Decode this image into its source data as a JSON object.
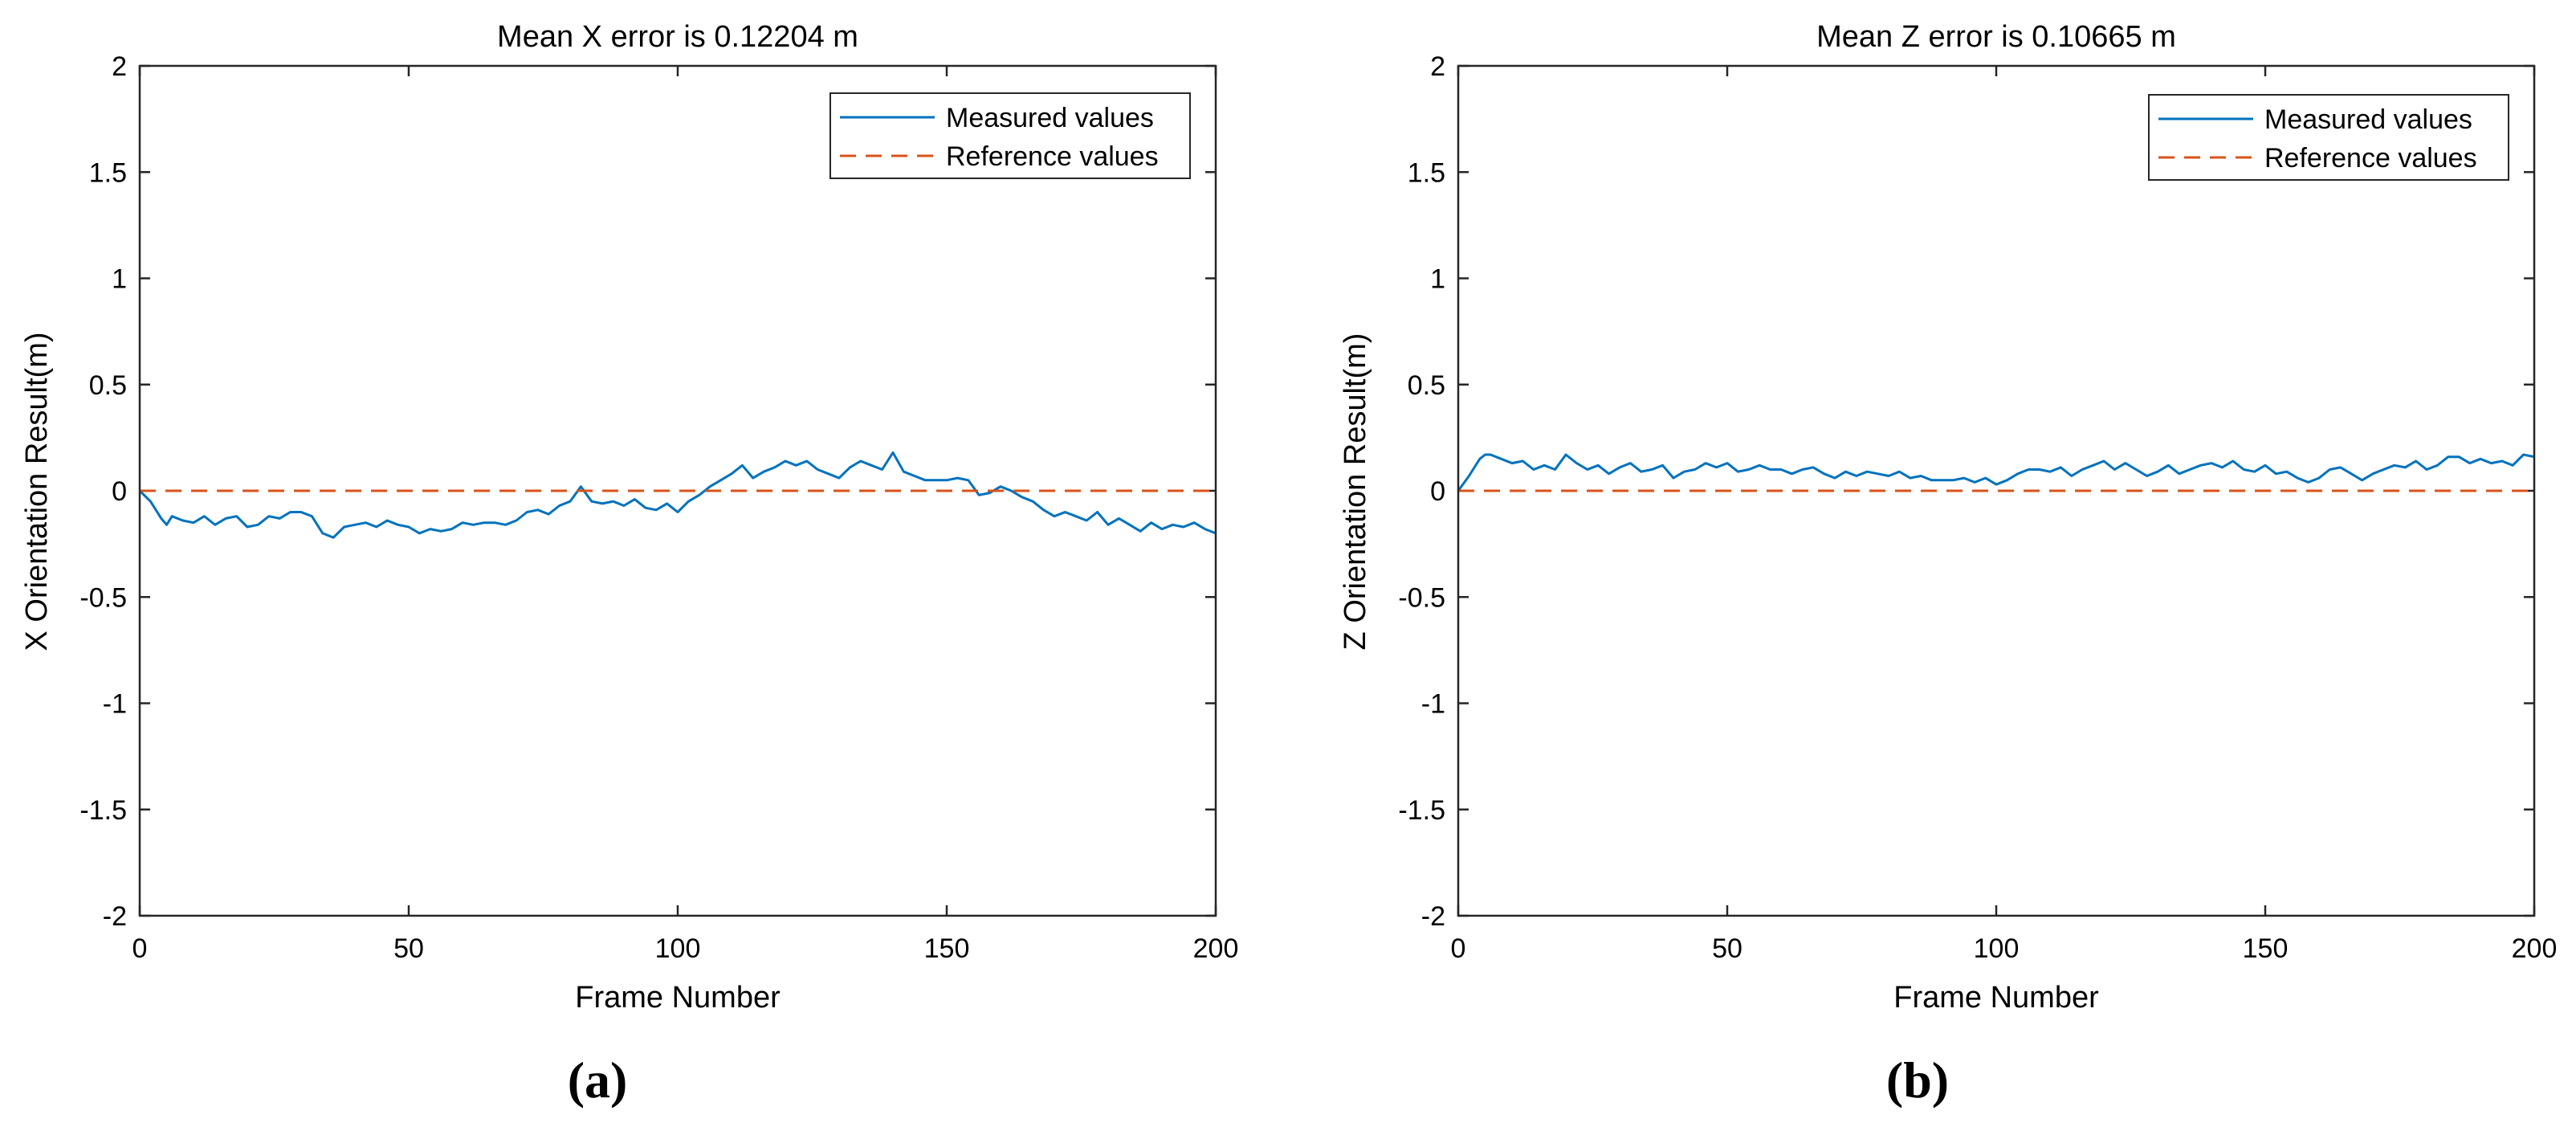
{
  "chart_data": [
    {
      "type": "line",
      "panel_label": "(a)",
      "title": "Mean X error is 0.12204 m",
      "xlabel": "Frame Number",
      "ylabel": "X Orientation Result(m)",
      "xlim": [
        0,
        200
      ],
      "ylim": [
        -2,
        2
      ],
      "xticks": [
        0,
        50,
        100,
        150,
        200
      ],
      "xtick_labels": [
        "0",
        "50",
        "100",
        "150",
        "200"
      ],
      "yticks": [
        -2,
        -1.5,
        -1,
        -0.5,
        0,
        0.5,
        1,
        1.5,
        2
      ],
      "ytick_labels": [
        "-2",
        "-1.5",
        "-1",
        "-0.5",
        "0",
        "0.5",
        "1",
        "1.5",
        "2"
      ],
      "grid": false,
      "legend_position": "top-right",
      "series": [
        {
          "name": "Measured values",
          "style": "solid",
          "color": "#0072BD",
          "x": [
            0,
            2,
            4,
            5,
            6,
            8,
            10,
            12,
            14,
            16,
            18,
            20,
            22,
            24,
            26,
            28,
            30,
            32,
            34,
            36,
            38,
            40,
            42,
            44,
            46,
            48,
            50,
            52,
            54,
            56,
            58,
            60,
            62,
            64,
            66,
            68,
            70,
            72,
            74,
            76,
            78,
            80,
            82,
            84,
            86,
            88,
            90,
            92,
            94,
            96,
            98,
            100,
            102,
            104,
            106,
            108,
            110,
            112,
            114,
            116,
            118,
            120,
            122,
            124,
            126,
            128,
            130,
            132,
            134,
            136,
            138,
            140,
            142,
            144,
            146,
            148,
            150,
            152,
            154,
            156,
            158,
            160,
            162,
            164,
            166,
            168,
            170,
            172,
            174,
            176,
            178,
            180,
            182,
            184,
            186,
            188,
            190,
            192,
            194,
            196,
            198,
            200
          ],
          "values": [
            0,
            -0.05,
            -0.13,
            -0.16,
            -0.12,
            -0.14,
            -0.15,
            -0.12,
            -0.16,
            -0.13,
            -0.12,
            -0.17,
            -0.16,
            -0.12,
            -0.13,
            -0.1,
            -0.1,
            -0.12,
            -0.2,
            -0.22,
            -0.17,
            -0.16,
            -0.15,
            -0.17,
            -0.14,
            -0.16,
            -0.17,
            -0.2,
            -0.18,
            -0.19,
            -0.18,
            -0.15,
            -0.16,
            -0.15,
            -0.15,
            -0.16,
            -0.14,
            -0.1,
            -0.09,
            -0.11,
            -0.07,
            -0.05,
            0.02,
            -0.05,
            -0.06,
            -0.05,
            -0.07,
            -0.04,
            -0.08,
            -0.09,
            -0.06,
            -0.1,
            -0.05,
            -0.02,
            0.02,
            0.05,
            0.08,
            0.12,
            0.06,
            0.09,
            0.11,
            0.14,
            0.12,
            0.14,
            0.1,
            0.08,
            0.06,
            0.11,
            0.14,
            0.12,
            0.1,
            0.18,
            0.09,
            0.07,
            0.05,
            0.05,
            0.05,
            0.06,
            0.05,
            -0.02,
            -0.01,
            0.02,
            0.0,
            -0.03,
            -0.05,
            -0.09,
            -0.12,
            -0.1,
            -0.12,
            -0.14,
            -0.1,
            -0.16,
            -0.13,
            -0.16,
            -0.19,
            -0.15,
            -0.18,
            -0.16,
            -0.17,
            -0.15,
            -0.18,
            -0.2
          ]
        },
        {
          "name": "Reference values",
          "style": "dashed",
          "color": "#D95319",
          "x": [
            0,
            200
          ],
          "values": [
            0,
            0
          ]
        }
      ]
    },
    {
      "type": "line",
      "panel_label": "(b)",
      "title": "Mean Z error is 0.10665 m",
      "xlabel": "Frame Number",
      "ylabel": "Z Orientation Result(m)",
      "xlim": [
        0,
        200
      ],
      "ylim": [
        -2,
        2
      ],
      "xticks": [
        0,
        50,
        100,
        150,
        200
      ],
      "xtick_labels": [
        "0",
        "50",
        "100",
        "150",
        "200"
      ],
      "yticks": [
        -2,
        -1.5,
        -1,
        -0.5,
        0,
        0.5,
        1,
        1.5,
        2
      ],
      "ytick_labels": [
        "-2",
        "-1.5",
        "-1",
        "-0.5",
        "0",
        "0.5",
        "1",
        "1.5",
        "2"
      ],
      "grid": false,
      "legend_position": "top-right",
      "series": [
        {
          "name": "Measured values",
          "style": "solid",
          "color": "#0072BD",
          "x": [
            0,
            2,
            4,
            5,
            6,
            8,
            10,
            12,
            14,
            16,
            18,
            20,
            22,
            24,
            26,
            28,
            30,
            32,
            34,
            36,
            38,
            40,
            42,
            44,
            46,
            48,
            50,
            52,
            54,
            56,
            58,
            60,
            62,
            64,
            66,
            68,
            70,
            72,
            74,
            76,
            78,
            80,
            82,
            84,
            86,
            88,
            90,
            92,
            94,
            96,
            98,
            100,
            102,
            104,
            106,
            108,
            110,
            112,
            114,
            116,
            118,
            120,
            122,
            124,
            126,
            128,
            130,
            132,
            134,
            136,
            138,
            140,
            142,
            144,
            146,
            148,
            150,
            152,
            154,
            156,
            158,
            160,
            162,
            164,
            166,
            168,
            170,
            172,
            174,
            176,
            178,
            180,
            182,
            184,
            186,
            188,
            190,
            192,
            194,
            196,
            198,
            200
          ],
          "values": [
            0,
            0.07,
            0.15,
            0.17,
            0.17,
            0.15,
            0.13,
            0.14,
            0.1,
            0.12,
            0.1,
            0.17,
            0.13,
            0.1,
            0.12,
            0.08,
            0.11,
            0.13,
            0.09,
            0.1,
            0.12,
            0.06,
            0.09,
            0.1,
            0.13,
            0.11,
            0.13,
            0.09,
            0.1,
            0.12,
            0.1,
            0.1,
            0.08,
            0.1,
            0.11,
            0.08,
            0.06,
            0.09,
            0.07,
            0.09,
            0.08,
            0.07,
            0.09,
            0.06,
            0.07,
            0.05,
            0.05,
            0.05,
            0.06,
            0.04,
            0.06,
            0.03,
            0.05,
            0.08,
            0.1,
            0.1,
            0.09,
            0.11,
            0.07,
            0.1,
            0.12,
            0.14,
            0.1,
            0.13,
            0.1,
            0.07,
            0.09,
            0.12,
            0.08,
            0.1,
            0.12,
            0.13,
            0.11,
            0.14,
            0.1,
            0.09,
            0.12,
            0.08,
            0.09,
            0.06,
            0.04,
            0.06,
            0.1,
            0.11,
            0.08,
            0.05,
            0.08,
            0.1,
            0.12,
            0.11,
            0.14,
            0.1,
            0.12,
            0.16,
            0.16,
            0.13,
            0.15,
            0.13,
            0.14,
            0.12,
            0.17,
            0.16
          ]
        },
        {
          "name": "Reference values",
          "style": "dashed",
          "color": "#D95319",
          "x": [
            0,
            200
          ],
          "values": [
            0,
            0
          ]
        }
      ]
    }
  ]
}
